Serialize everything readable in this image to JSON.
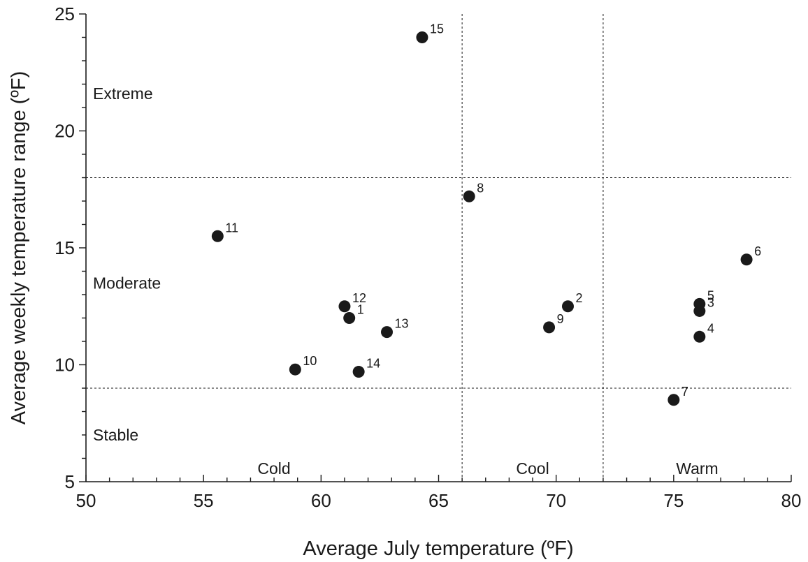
{
  "chart_data": {
    "type": "scatter",
    "xlabel": "Average July temperature (ºF)",
    "ylabel": "Average weekly temperature range (ºF)",
    "xlim": [
      50,
      80
    ],
    "ylim": [
      5,
      25
    ],
    "x_ticks": [
      "50",
      "55",
      "60",
      "65",
      "70",
      "75",
      "80"
    ],
    "y_ticks": [
      "5",
      "10",
      "15",
      "20",
      "25"
    ],
    "grid": false,
    "reference_lines": {
      "x": [
        66,
        72
      ],
      "y": [
        9,
        18
      ]
    },
    "region_labels": {
      "y": [
        {
          "text": "Extreme",
          "at": 21.6
        },
        {
          "text": "Moderate",
          "at": 13.5
        },
        {
          "text": "Stable",
          "at": 7
        }
      ],
      "x": [
        {
          "text": "Cold",
          "at": 58
        },
        {
          "text": "Cool",
          "at": 69
        },
        {
          "text": "Warm",
          "at": 76
        }
      ]
    },
    "points": [
      {
        "label": "1",
        "x": 61.2,
        "y": 12.0
      },
      {
        "label": "2",
        "x": 70.5,
        "y": 12.5
      },
      {
        "label": "3",
        "x": 76.1,
        "y": 12.3
      },
      {
        "label": "4",
        "x": 76.1,
        "y": 11.2
      },
      {
        "label": "5",
        "x": 76.1,
        "y": 12.6
      },
      {
        "label": "6",
        "x": 78.1,
        "y": 14.5
      },
      {
        "label": "7",
        "x": 75.0,
        "y": 8.5
      },
      {
        "label": "8",
        "x": 66.3,
        "y": 17.2
      },
      {
        "label": "9",
        "x": 69.7,
        "y": 11.6
      },
      {
        "label": "10",
        "x": 58.9,
        "y": 9.8
      },
      {
        "label": "11",
        "x": 55.6,
        "y": 15.5
      },
      {
        "label": "12",
        "x": 61.0,
        "y": 12.5
      },
      {
        "label": "13",
        "x": 62.8,
        "y": 11.4
      },
      {
        "label": "14",
        "x": 61.6,
        "y": 9.7
      },
      {
        "label": "15",
        "x": 64.3,
        "y": 24.0
      }
    ]
  }
}
